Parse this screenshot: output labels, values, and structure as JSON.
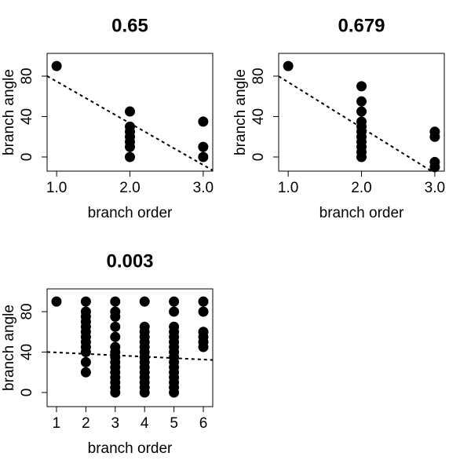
{
  "chart_data": [
    {
      "type": "scatter",
      "title": "0.65",
      "x_label": "branch order",
      "y_label": "branch angle",
      "color": "#000000",
      "x": [
        1,
        2,
        2,
        2,
        2,
        2,
        2,
        2,
        3,
        3,
        3
      ],
      "y": [
        90,
        45,
        30,
        25,
        20,
        15,
        10,
        0,
        35,
        10,
        0
      ],
      "fit": {
        "intercept": 116,
        "slope": -41.3
      },
      "xlim": [
        0.87,
        3.13
      ],
      "ylim": [
        -14,
        102.5
      ],
      "xticks": [
        {
          "value": 1,
          "label": "1.0"
        },
        {
          "value": 2,
          "label": "2.0"
        },
        {
          "value": 3,
          "label": "3.0"
        }
      ],
      "yticks": [
        0,
        40,
        80
      ]
    },
    {
      "type": "scatter",
      "title": "0.679",
      "x_label": "branch order",
      "y_label": "branch angle",
      "color": "#000000",
      "x": [
        1,
        2,
        2,
        2,
        2,
        2,
        2,
        2,
        2,
        2,
        2,
        2,
        3,
        3,
        3,
        3
      ],
      "y": [
        90,
        70,
        55,
        45,
        35,
        30,
        25,
        20,
        15,
        10,
        5,
        0,
        25,
        20,
        -5,
        -10
      ],
      "fit": {
        "intercept": 119,
        "slope": -45
      },
      "xlim": [
        0.87,
        3.13
      ],
      "ylim": [
        -14,
        102.5
      ],
      "xticks": [
        {
          "value": 1,
          "label": "1.0"
        },
        {
          "value": 2,
          "label": "2.0"
        },
        {
          "value": 3,
          "label": "3.0"
        }
      ],
      "yticks": [
        0,
        40,
        80
      ]
    },
    {
      "type": "scatter",
      "title": "0.003",
      "x_label": "branch order",
      "y_label": "branch angle",
      "color": "#000000",
      "x": [
        1,
        2,
        2,
        2,
        2,
        2,
        2,
        2,
        2,
        2,
        2,
        2,
        2,
        3,
        3,
        3,
        3,
        3,
        3,
        3,
        3,
        3,
        3,
        3,
        3,
        3,
        3,
        3,
        4,
        4,
        4,
        4,
        4,
        4,
        4,
        4,
        4,
        4,
        4,
        4,
        4,
        4,
        4,
        5,
        5,
        5,
        5,
        5,
        5,
        5,
        5,
        5,
        5,
        5,
        5,
        5,
        5,
        5,
        5,
        6,
        6,
        6,
        6,
        6,
        6
      ],
      "y": [
        90,
        90,
        80,
        75,
        70,
        65,
        60,
        55,
        50,
        45,
        40,
        30,
        20,
        90,
        80,
        75,
        65,
        55,
        45,
        40,
        35,
        30,
        25,
        20,
        15,
        10,
        5,
        0,
        90,
        65,
        60,
        55,
        50,
        45,
        40,
        35,
        30,
        25,
        20,
        15,
        10,
        5,
        0,
        90,
        80,
        65,
        60,
        55,
        50,
        45,
        40,
        35,
        30,
        25,
        20,
        15,
        10,
        5,
        0,
        90,
        80,
        60,
        55,
        50,
        45
      ],
      "fit": {
        "intercept": 41,
        "slope": -1.4
      },
      "xlim": [
        0.68,
        6.32
      ],
      "ylim": [
        -14,
        102.5
      ],
      "xticks": [
        1,
        2,
        3,
        4,
        5,
        6
      ],
      "yticks": [
        0,
        40,
        80
      ]
    }
  ]
}
